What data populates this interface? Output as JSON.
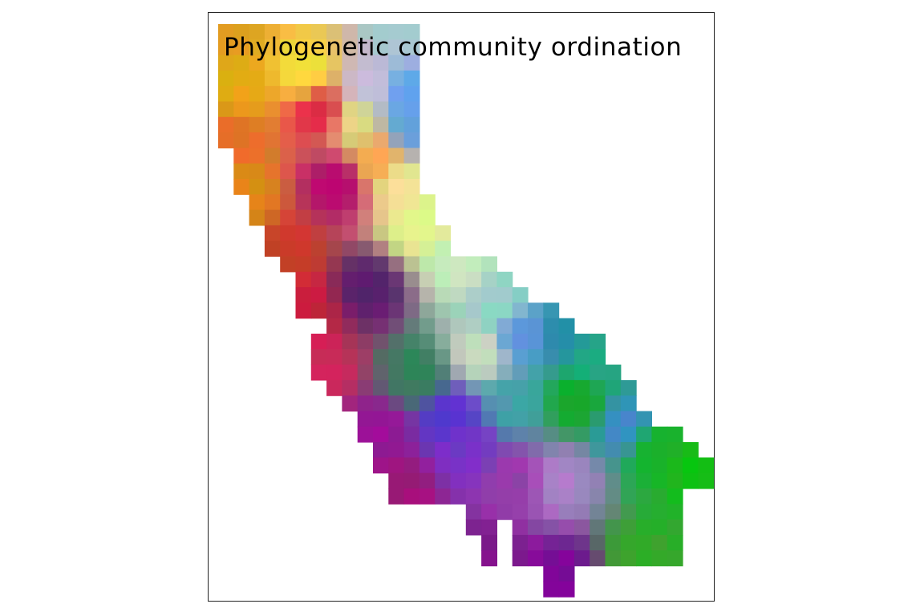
{
  "title": "Phylogenetic community ordination",
  "palette": {
    "background": "#ffffff",
    "frame": "#222222"
  }
}
